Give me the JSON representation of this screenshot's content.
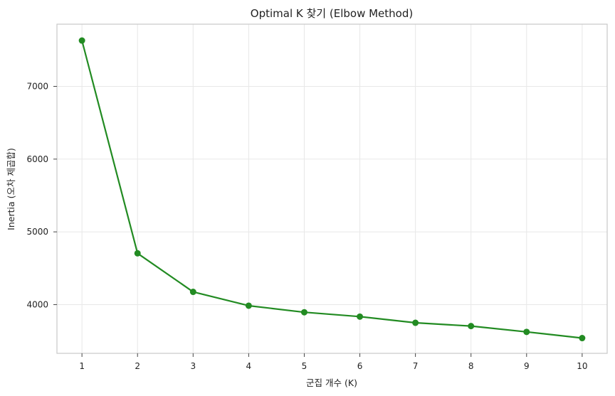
{
  "chart_data": {
    "type": "line",
    "title": "Optimal K 찾기 (Elbow Method)",
    "xlabel": "군집 개수 (K)",
    "ylabel": "Inertia (오차 제곱합)",
    "x": [
      1,
      2,
      3,
      4,
      5,
      6,
      7,
      8,
      9,
      10
    ],
    "x_ticks": [
      1,
      2,
      3,
      4,
      5,
      6,
      7,
      8,
      9,
      10
    ],
    "y_ticks": [
      4000,
      5000,
      6000,
      7000
    ],
    "xlim": [
      0.55,
      10.45
    ],
    "ylim": [
      3330,
      7855
    ],
    "grid": true,
    "marker": "circle",
    "series": [
      {
        "values": [
          7630,
          4705,
          4175,
          3985,
          3895,
          3835,
          3750,
          3705,
          3625,
          3540
        ],
        "color": "#228b22"
      }
    ]
  }
}
